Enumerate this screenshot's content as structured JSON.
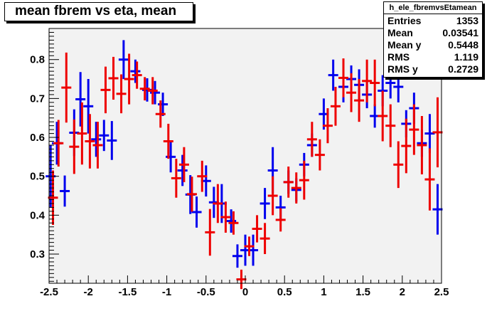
{
  "title": "mean fbrem vs eta, mean",
  "stats": {
    "name": "h_ele_fbremvsEtamean",
    "rows": [
      {
        "label": "Entries",
        "value": "1353"
      },
      {
        "label": "Mean",
        "value": "0.03541"
      },
      {
        "label": "Mean y",
        "value": "0.5448"
      },
      {
        "label": "RMS",
        "value": "1.119"
      },
      {
        "label": "RMS y",
        "value": "0.2729"
      }
    ]
  },
  "chart_data": {
    "type": "scatter",
    "title": "mean fbrem vs eta, mean",
    "xlabel": "",
    "ylabel": "",
    "xlim": [
      -2.5,
      2.5
    ],
    "ylim": [
      0.225,
      0.88
    ],
    "x_ticks": [
      "-2.5",
      "-2",
      "-1.5",
      "-1",
      "-0.5",
      "0",
      "0.5",
      "1",
      "1.5",
      "2",
      "2.5"
    ],
    "y_ticks": [
      "0.3",
      "0.4",
      "0.5",
      "0.6",
      "0.7",
      "0.8"
    ],
    "grid": false,
    "background": "#f2f2f2",
    "series": [
      {
        "color": "#0000ee",
        "points": [
          {
            "x": -2.48,
            "y": 0.5,
            "err": 0.08
          },
          {
            "x": -2.4,
            "y": 0.585,
            "err": 0.055
          },
          {
            "x": -2.3,
            "y": 0.462,
            "err": 0.04
          },
          {
            "x": -2.18,
            "y": 0.612,
            "err": 0.06
          },
          {
            "x": -2.1,
            "y": 0.698,
            "err": 0.07
          },
          {
            "x": -2.0,
            "y": 0.68,
            "err": 0.07
          },
          {
            "x": -1.9,
            "y": 0.595,
            "err": 0.045
          },
          {
            "x": -1.8,
            "y": 0.605,
            "err": 0.04
          },
          {
            "x": -1.7,
            "y": 0.592,
            "err": 0.05
          },
          {
            "x": -1.55,
            "y": 0.8,
            "err": 0.05
          },
          {
            "x": -1.4,
            "y": 0.77,
            "err": 0.03
          },
          {
            "x": -1.25,
            "y": 0.722,
            "err": 0.03
          },
          {
            "x": -1.15,
            "y": 0.715,
            "err": 0.03
          },
          {
            "x": -1.05,
            "y": 0.685,
            "err": 0.03
          },
          {
            "x": -0.95,
            "y": 0.55,
            "err": 0.04
          },
          {
            "x": -0.8,
            "y": 0.515,
            "err": 0.04
          },
          {
            "x": -0.7,
            "y": 0.453,
            "err": 0.05
          },
          {
            "x": -0.62,
            "y": 0.408,
            "err": 0.04
          },
          {
            "x": -0.5,
            "y": 0.488,
            "err": 0.04
          },
          {
            "x": -0.4,
            "y": 0.433,
            "err": 0.04
          },
          {
            "x": -0.3,
            "y": 0.43,
            "err": 0.05
          },
          {
            "x": -0.18,
            "y": 0.385,
            "err": 0.03
          },
          {
            "x": -0.1,
            "y": 0.295,
            "err": 0.03
          },
          {
            "x": 0.0,
            "y": 0.31,
            "err": 0.04
          },
          {
            "x": 0.1,
            "y": 0.31,
            "err": 0.04
          },
          {
            "x": 0.25,
            "y": 0.43,
            "err": 0.04
          },
          {
            "x": 0.35,
            "y": 0.515,
            "err": 0.06
          },
          {
            "x": 0.45,
            "y": 0.42,
            "err": 0.03
          },
          {
            "x": 0.55,
            "y": 0.485,
            "err": 0.03
          },
          {
            "x": 0.65,
            "y": 0.465,
            "err": 0.03
          },
          {
            "x": 0.75,
            "y": 0.53,
            "err": 0.03
          },
          {
            "x": 0.85,
            "y": 0.58,
            "err": 0.03
          },
          {
            "x": 1.0,
            "y": 0.66,
            "err": 0.04
          },
          {
            "x": 1.12,
            "y": 0.76,
            "err": 0.04
          },
          {
            "x": 1.25,
            "y": 0.73,
            "err": 0.04
          },
          {
            "x": 1.35,
            "y": 0.75,
            "err": 0.035
          },
          {
            "x": 1.45,
            "y": 0.735,
            "err": 0.04
          },
          {
            "x": 1.55,
            "y": 0.71,
            "err": 0.035
          },
          {
            "x": 1.65,
            "y": 0.655,
            "err": 0.03
          },
          {
            "x": 1.75,
            "y": 0.72,
            "err": 0.04
          },
          {
            "x": 1.85,
            "y": 0.74,
            "err": 0.04
          },
          {
            "x": 1.95,
            "y": 0.73,
            "err": 0.04
          },
          {
            "x": 2.05,
            "y": 0.635,
            "err": 0.035
          },
          {
            "x": 2.15,
            "y": 0.675,
            "err": 0.04
          },
          {
            "x": 2.25,
            "y": 0.585,
            "err": 0.035
          },
          {
            "x": 2.35,
            "y": 0.61,
            "err": 0.05
          },
          {
            "x": 2.45,
            "y": 0.415,
            "err": 0.065
          }
        ]
      },
      {
        "color": "#ee0000",
        "points": [
          {
            "x": -2.45,
            "y": 0.445,
            "err": 0.07
          },
          {
            "x": -2.38,
            "y": 0.585,
            "err": 0.06
          },
          {
            "x": -2.28,
            "y": 0.728,
            "err": 0.09
          },
          {
            "x": -2.18,
            "y": 0.576,
            "err": 0.07
          },
          {
            "x": -2.08,
            "y": 0.61,
            "err": 0.08
          },
          {
            "x": -1.98,
            "y": 0.59,
            "err": 0.07
          },
          {
            "x": -1.88,
            "y": 0.58,
            "err": 0.06
          },
          {
            "x": -1.78,
            "y": 0.722,
            "err": 0.06
          },
          {
            "x": -1.68,
            "y": 0.752,
            "err": 0.055
          },
          {
            "x": -1.58,
            "y": 0.712,
            "err": 0.05
          },
          {
            "x": -1.48,
            "y": 0.75,
            "err": 0.065
          },
          {
            "x": -1.38,
            "y": 0.76,
            "err": 0.035
          },
          {
            "x": -1.28,
            "y": 0.725,
            "err": 0.03
          },
          {
            "x": -1.18,
            "y": 0.72,
            "err": 0.035
          },
          {
            "x": -1.08,
            "y": 0.66,
            "err": 0.035
          },
          {
            "x": -0.98,
            "y": 0.59,
            "err": 0.045
          },
          {
            "x": -0.88,
            "y": 0.495,
            "err": 0.05
          },
          {
            "x": -0.78,
            "y": 0.53,
            "err": 0.045
          },
          {
            "x": -0.68,
            "y": 0.454,
            "err": 0.045
          },
          {
            "x": -0.55,
            "y": 0.5,
            "err": 0.04
          },
          {
            "x": -0.45,
            "y": 0.356,
            "err": 0.06
          },
          {
            "x": -0.35,
            "y": 0.43,
            "err": 0.05
          },
          {
            "x": -0.25,
            "y": 0.395,
            "err": 0.04
          },
          {
            "x": -0.15,
            "y": 0.38,
            "err": 0.03
          },
          {
            "x": -0.05,
            "y": 0.235,
            "err": 0.025
          },
          {
            "x": 0.05,
            "y": 0.32,
            "err": 0.025
          },
          {
            "x": 0.15,
            "y": 0.365,
            "err": 0.035
          },
          {
            "x": 0.25,
            "y": 0.34,
            "err": 0.04
          },
          {
            "x": 0.35,
            "y": 0.45,
            "err": 0.05
          },
          {
            "x": 0.45,
            "y": 0.388,
            "err": 0.03
          },
          {
            "x": 0.55,
            "y": 0.485,
            "err": 0.04
          },
          {
            "x": 0.65,
            "y": 0.47,
            "err": 0.04
          },
          {
            "x": 0.75,
            "y": 0.49,
            "err": 0.05
          },
          {
            "x": 0.85,
            "y": 0.595,
            "err": 0.045
          },
          {
            "x": 0.95,
            "y": 0.555,
            "err": 0.04
          },
          {
            "x": 1.05,
            "y": 0.63,
            "err": 0.045
          },
          {
            "x": 1.15,
            "y": 0.68,
            "err": 0.05
          },
          {
            "x": 1.25,
            "y": 0.753,
            "err": 0.05
          },
          {
            "x": 1.35,
            "y": 0.715,
            "err": 0.05
          },
          {
            "x": 1.45,
            "y": 0.695,
            "err": 0.055
          },
          {
            "x": 1.55,
            "y": 0.745,
            "err": 0.055
          },
          {
            "x": 1.65,
            "y": 0.74,
            "err": 0.06
          },
          {
            "x": 1.75,
            "y": 0.655,
            "err": 0.065
          },
          {
            "x": 1.85,
            "y": 0.63,
            "err": 0.055
          },
          {
            "x": 1.95,
            "y": 0.53,
            "err": 0.06
          },
          {
            "x": 2.05,
            "y": 0.578,
            "err": 0.07
          },
          {
            "x": 2.15,
            "y": 0.62,
            "err": 0.065
          },
          {
            "x": 2.25,
            "y": 0.58,
            "err": 0.075
          },
          {
            "x": 2.35,
            "y": 0.492,
            "err": 0.08
          },
          {
            "x": 2.45,
            "y": 0.613,
            "err": 0.09
          }
        ]
      }
    ]
  }
}
